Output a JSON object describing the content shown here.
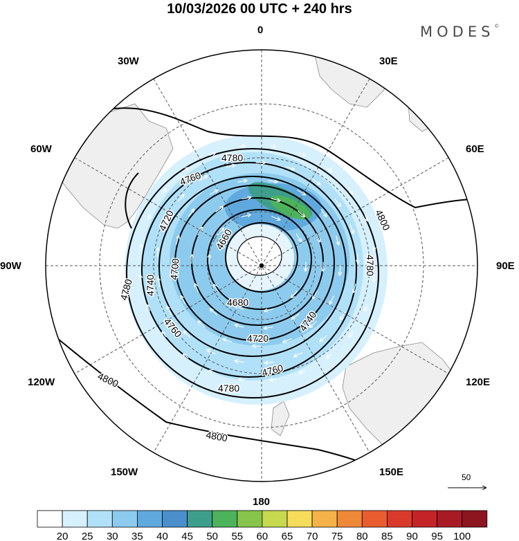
{
  "title": "10/03/2026  00 UTC  + 240 hrs",
  "brand": "MODES",
  "brand_mark": "©",
  "meridian_labels": {
    "deg0": "0",
    "deg30e": "30E",
    "deg60e": "60E",
    "deg90e": "90E",
    "deg120e": "120E",
    "deg150e": "150E",
    "deg180": "180",
    "deg150w": "150W",
    "deg120w": "120W",
    "deg90w": "90W",
    "deg60w": "60W",
    "deg30w": "30W"
  },
  "contour_labels": {
    "c4780_top": "4780",
    "c4760_top": "4760",
    "c4720_left": "4720",
    "c4660": "4660",
    "c4800_right": "4800",
    "c4780_right": "4780",
    "c4740_left": "4740",
    "c4700": "4700",
    "c4680": "4680",
    "c4780_left": "4780",
    "c4760_bot": "4760",
    "c4720_bot": "4720",
    "c4740_bot": "4740",
    "c4800_left": "4800",
    "c4760_bot2": "4760",
    "c4780_bot": "4780",
    "c4800_bot": "4800"
  },
  "vector_reference": "50",
  "colorbar": {
    "labels": [
      "20",
      "25",
      "30",
      "35",
      "40",
      "45",
      "50",
      "55",
      "60",
      "65",
      "70",
      "75",
      "80",
      "85",
      "90",
      "95",
      "100"
    ],
    "colors": [
      "#ffffff",
      "#d6f0fd",
      "#b1e1f8",
      "#8ccbee",
      "#5fa9de",
      "#4a8fcc",
      "#3e9e8c",
      "#4cb35a",
      "#86c44b",
      "#c6d94f",
      "#f6dc5a",
      "#f4b248",
      "#ef8938",
      "#e95c30",
      "#d93a2c",
      "#c42428",
      "#a81b24",
      "#8c1520"
    ]
  },
  "wind_shading": [
    {
      "color": "#d6f0fd",
      "center": [
        370,
        390
      ],
      "radii": [
        190,
        195
      ]
    },
    {
      "color": "#b1e1f8",
      "center": [
        365,
        385
      ],
      "radii": [
        160,
        165
      ]
    },
    {
      "color": "#8ccbee",
      "center": [
        375,
        375
      ],
      "radii": [
        130,
        125
      ]
    },
    {
      "color": "#5fa9de",
      "center": [
        395,
        300
      ],
      "radii": [
        70,
        35
      ]
    }
  ],
  "jet_maxima": [
    {
      "color": "#3e9e8c",
      "center": [
        405,
        290
      ],
      "radii": [
        50,
        18
      ]
    },
    {
      "color": "#4cb35a",
      "center": [
        420,
        300
      ],
      "radii": [
        32,
        12
      ]
    }
  ]
}
